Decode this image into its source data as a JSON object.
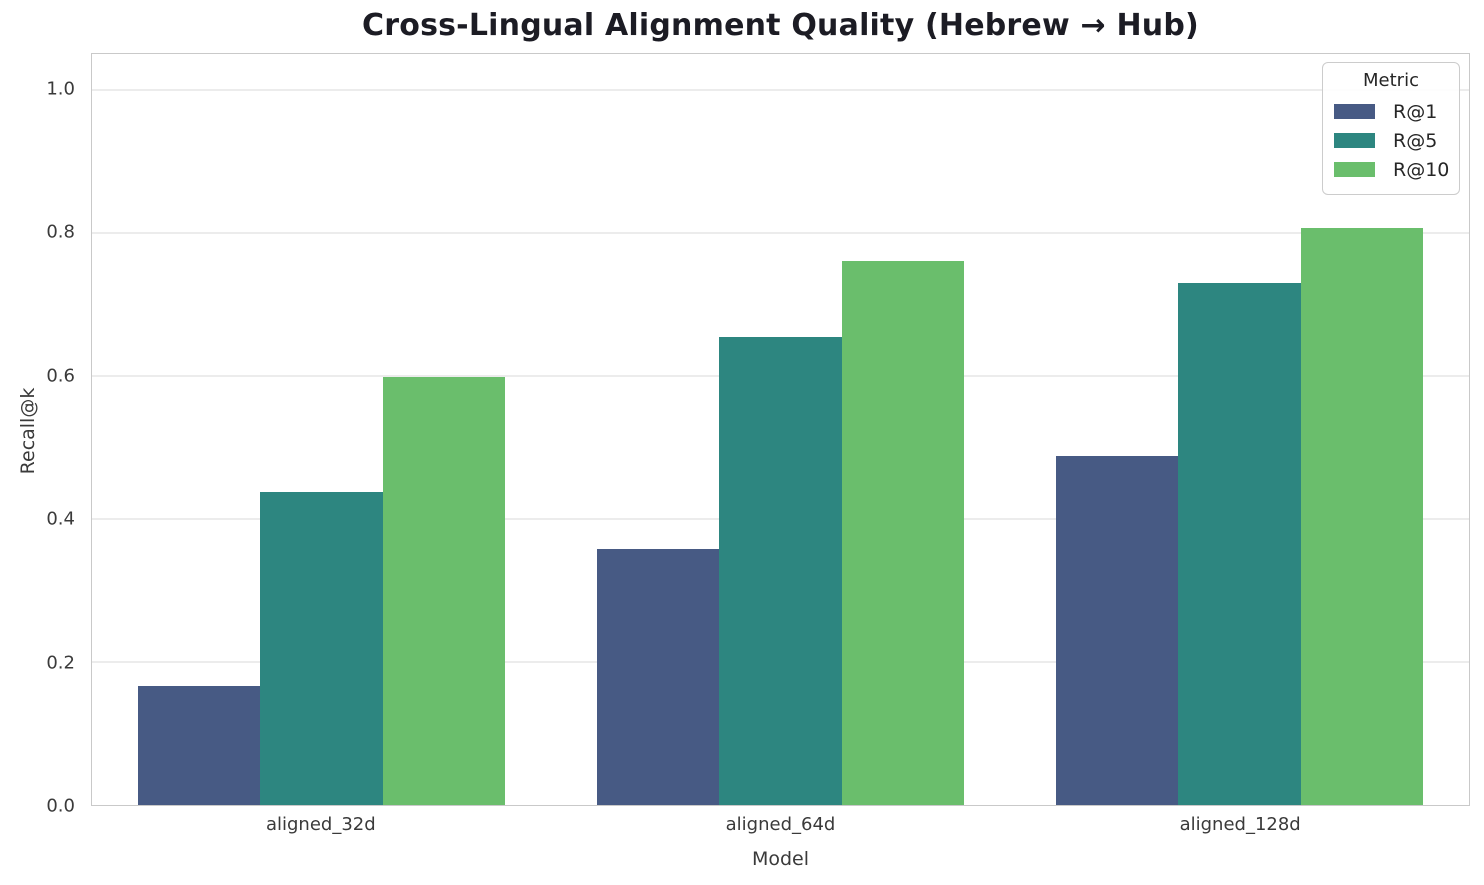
{
  "chart_data": {
    "type": "bar",
    "title": "Cross-Lingual Alignment Quality (Hebrew → Hub)",
    "xlabel": "Model",
    "ylabel": "Recall@k",
    "categories": [
      "aligned_32d",
      "aligned_64d",
      "aligned_128d"
    ],
    "series": [
      {
        "name": "R@1",
        "color": "#475a84",
        "values": [
          0.166,
          0.358,
          0.488
        ]
      },
      {
        "name": "R@5",
        "color": "#2d8680",
        "values": [
          0.438,
          0.655,
          0.73
        ]
      },
      {
        "name": "R@10",
        "color": "#6abe6c",
        "values": [
          0.598,
          0.76,
          0.807
        ]
      }
    ],
    "ylim": [
      0,
      1.05
    ],
    "yticks": [
      0.0,
      0.2,
      0.4,
      0.6,
      0.8,
      1.0
    ],
    "ytick_labels": [
      "0.0",
      "0.2",
      "0.4",
      "0.6",
      "0.8",
      "1.0"
    ],
    "grid": true,
    "legend": {
      "title": "Metric",
      "position": "upper right"
    },
    "layout": {
      "group_slot_fraction": 0.8,
      "colors": {
        "grid": "#ececec",
        "spine": "#c9c9c9",
        "text": "#3a3a3a",
        "title": "#1c1c24"
      }
    }
  }
}
